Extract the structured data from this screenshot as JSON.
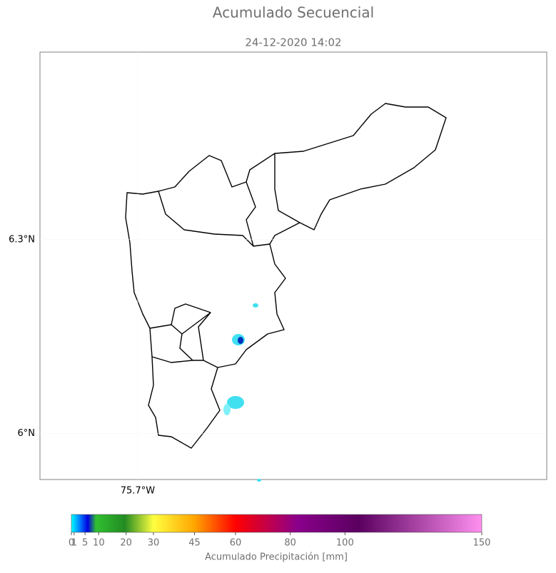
{
  "chart_data": {
    "type": "map",
    "title": "Acumulado Secuencial",
    "subtitle": "24-12-2020 14:02",
    "ylim": [
      5.929,
      6.59
    ],
    "yticks": [
      {
        "value": 6.3,
        "label": "6.3°N"
      },
      {
        "value": 6.0,
        "label": "6°N"
      }
    ],
    "xlim": [
      -75.851,
      -75.068
    ],
    "xticks": [
      {
        "value": -75.7,
        "label": "75.7°W"
      }
    ],
    "colorbar": {
      "label": "Acumulado Precipitación [mm]",
      "lim": [
        0,
        150
      ],
      "ticks": [
        0,
        1,
        5,
        10,
        20,
        30,
        45,
        60,
        80,
        100,
        150
      ]
    }
  }
}
